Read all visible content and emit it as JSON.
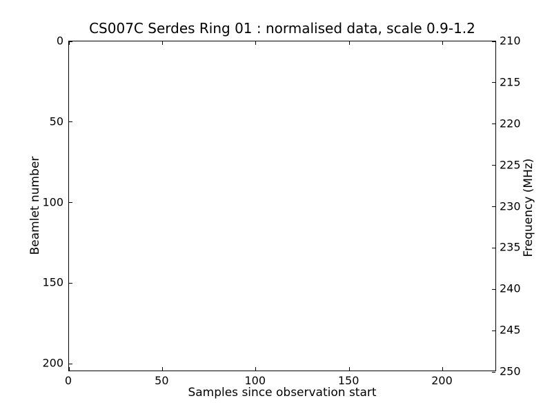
{
  "chart_data": {
    "type": "heatmap",
    "title": "CS007C Serdes Ring 01 : normalised data, scale 0.9-1.2",
    "xlabel": "Samples since observation start",
    "ylabel_left": "Beamlet number",
    "ylabel_right": "Frequency (MHz)",
    "xlim": [
      0,
      229
    ],
    "ylim_left": [
      0,
      205
    ],
    "y_left_inverted": true,
    "ylim_right": [
      210,
      250
    ],
    "xticks": [
      0,
      50,
      100,
      150,
      200
    ],
    "yticks_left": [
      0,
      50,
      100,
      150,
      200
    ],
    "yticks_right": [
      210,
      215,
      220,
      225,
      230,
      235,
      240,
      245,
      250
    ],
    "grid": false,
    "legend": null,
    "colorscale_from_title": {
      "min": 0.9,
      "max": 1.2
    },
    "series": [],
    "values_note": "plot area is uniformly blank white; no visible data points"
  },
  "colors": {
    "foreground": "#000000",
    "background": "#ffffff"
  }
}
